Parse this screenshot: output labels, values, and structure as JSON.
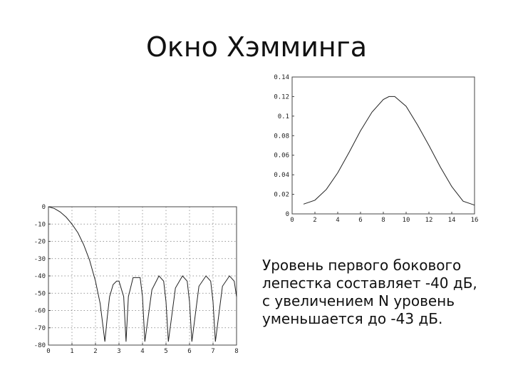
{
  "slide": {
    "title": "Окно Хэмминга",
    "description": [
      "Уровень первого бокового",
      "лепестка составляет -40 дБ,",
      "с увеличением N уровень",
      "уменьшается до -43 дБ."
    ]
  },
  "chart_data": [
    {
      "id": "window",
      "type": "line",
      "xlim": [
        0,
        16
      ],
      "ylim": [
        0,
        0.14
      ],
      "xticks": [
        0,
        2,
        4,
        6,
        8,
        10,
        12,
        14,
        16
      ],
      "xtick_labels": [
        "0",
        "2",
        "4",
        "6",
        "8",
        "10",
        "12",
        "14",
        "16"
      ],
      "yticks": [
        0,
        0.02,
        0.04,
        0.06,
        0.08,
        0.1,
        0.12,
        0.14
      ],
      "ytick_labels": [
        "0",
        "0.02",
        "0.04",
        "0.06",
        "0.08",
        "0.1",
        "0.12",
        "0.14"
      ],
      "grid": false,
      "series": [
        {
          "x": [
            1,
            2,
            3,
            4,
            5,
            6,
            7,
            8,
            8.5,
            9,
            10,
            11,
            12,
            13,
            14,
            15,
            16
          ],
          "y": [
            0.01,
            0.014,
            0.025,
            0.042,
            0.063,
            0.085,
            0.104,
            0.117,
            0.12,
            0.12,
            0.11,
            0.091,
            0.07,
            0.048,
            0.028,
            0.013,
            0.009
          ]
        }
      ]
    },
    {
      "id": "spectrum",
      "type": "line",
      "xlim": [
        0,
        8
      ],
      "ylim": [
        -80,
        0
      ],
      "xticks": [
        0,
        1,
        2,
        3,
        4,
        5,
        6,
        7,
        8
      ],
      "xtick_labels": [
        "0",
        "1",
        "2",
        "3",
        "4",
        "5",
        "6",
        "7",
        "8"
      ],
      "yticks": [
        0,
        -10,
        -20,
        -30,
        -40,
        -50,
        -60,
        -70,
        -80
      ],
      "ytick_labels": [
        "0",
        "-10",
        "-20",
        "-30",
        "-40",
        "-50",
        "-60",
        "-70",
        "-80"
      ],
      "grid": true,
      "series": [
        {
          "x": [
            0,
            0.25,
            0.5,
            0.75,
            1.0,
            1.25,
            1.5,
            1.75,
            2.0,
            2.2,
            2.4,
            2.5,
            2.6,
            2.75,
            2.9,
            3.0,
            3.2,
            3.3,
            3.4,
            3.6,
            3.9,
            4.0,
            4.1,
            4.4,
            4.7,
            4.9,
            5.0,
            5.1,
            5.4,
            5.7,
            5.9,
            6.0,
            6.1,
            6.4,
            6.7,
            6.9,
            7.0,
            7.1,
            7.4,
            7.7,
            7.9,
            8.0
          ],
          "y": [
            0,
            -1,
            -3,
            -6,
            -10,
            -15,
            -22,
            -31,
            -43,
            -56,
            -78,
            -64,
            -52,
            -45,
            -43,
            -43,
            -52,
            -78,
            -52,
            -41,
            -41,
            -52,
            -78,
            -48,
            -40,
            -43,
            -55,
            -78,
            -47,
            -40,
            -43,
            -55,
            -78,
            -46,
            -40,
            -43,
            -55,
            -78,
            -46,
            -40,
            -43,
            -52
          ]
        }
      ]
    }
  ]
}
